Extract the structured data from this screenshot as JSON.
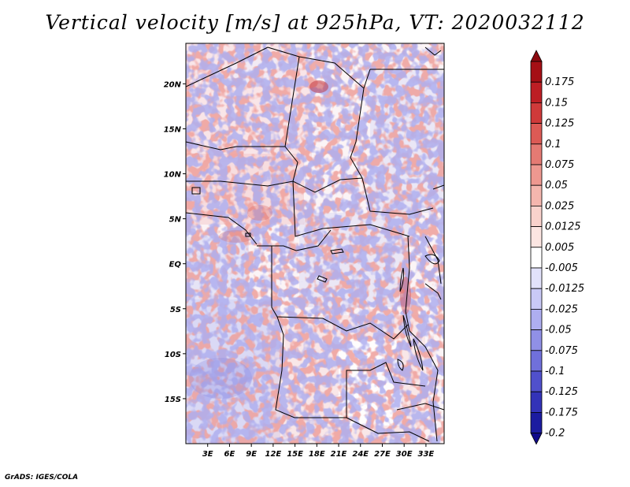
{
  "title": "Vertical velocity [m/s] at 925hPa, VT: 2020032112",
  "credit": "GrADS: IGES/COLA",
  "map": {
    "lon_range": [
      0,
      35.5
    ],
    "lat_range": [
      -20,
      24.5
    ],
    "lat_ticks": [
      {
        "value": 20,
        "label": "20N"
      },
      {
        "value": 15,
        "label": "15N"
      },
      {
        "value": 10,
        "label": "10N"
      },
      {
        "value": 5,
        "label": "5N"
      },
      {
        "value": 0,
        "label": "EQ"
      },
      {
        "value": -5,
        "label": "5S"
      },
      {
        "value": -10,
        "label": "10S"
      },
      {
        "value": -15,
        "label": "15S"
      }
    ],
    "lon_ticks": [
      {
        "value": 3,
        "label": "3E"
      },
      {
        "value": 6,
        "label": "6E"
      },
      {
        "value": 9,
        "label": "9E"
      },
      {
        "value": 12,
        "label": "12E"
      },
      {
        "value": 15,
        "label": "15E"
      },
      {
        "value": 18,
        "label": "18E"
      },
      {
        "value": 21,
        "label": "21E"
      },
      {
        "value": 24,
        "label": "24E"
      },
      {
        "value": 27,
        "label": "27E"
      },
      {
        "value": 30,
        "label": "30E"
      },
      {
        "value": 33,
        "label": "33E"
      }
    ]
  },
  "colorbar": {
    "levels": [
      {
        "label": "0.175",
        "color": "#a50f15"
      },
      {
        "label": "0.15",
        "color": "#bd1e24"
      },
      {
        "label": "0.125",
        "color": "#cf3a3a"
      },
      {
        "label": "0.1",
        "color": "#dc5a55"
      },
      {
        "label": "0.075",
        "color": "#e57a73"
      },
      {
        "label": "0.05",
        "color": "#ee9890"
      },
      {
        "label": "0.025",
        "color": "#f4b6ae"
      },
      {
        "label": "0.0125",
        "color": "#f9d2cc"
      },
      {
        "label": "0.005",
        "color": "#fce6e2"
      },
      {
        "label": "-0.005",
        "color": "#ffffff"
      },
      {
        "label": "-0.0125",
        "color": "#e2e2fb"
      },
      {
        "label": "-0.025",
        "color": "#c9c9f6"
      },
      {
        "label": "-0.05",
        "color": "#aeaef0"
      },
      {
        "label": "-0.075",
        "color": "#9090e6"
      },
      {
        "label": "-0.1",
        "color": "#7070db"
      },
      {
        "label": "-0.125",
        "color": "#5050cc"
      },
      {
        "label": "-0.175",
        "color": "#3333b8"
      },
      {
        "label": "-0.2",
        "color": "#1c1ca0"
      }
    ],
    "top_arrow_color": "#8b0a10",
    "bottom_arrow_color": "#100a8a",
    "extra_bottom_color": "#14149a"
  }
}
